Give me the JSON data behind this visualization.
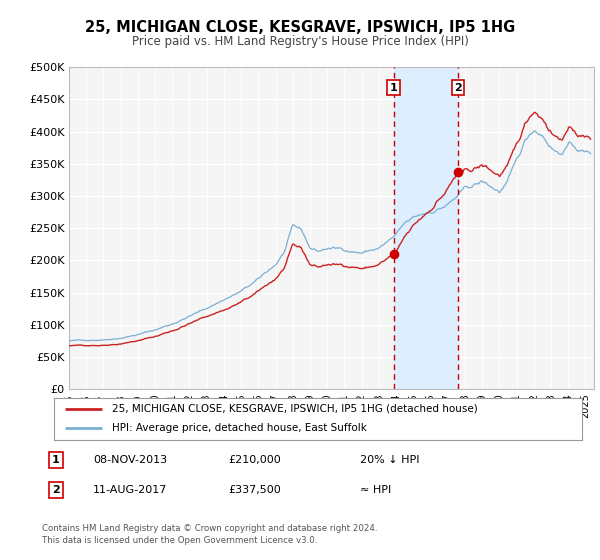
{
  "title": "25, MICHIGAN CLOSE, KESGRAVE, IPSWICH, IP5 1HG",
  "subtitle": "Price paid vs. HM Land Registry's House Price Index (HPI)",
  "ylim": [
    0,
    500000
  ],
  "yticks": [
    0,
    50000,
    100000,
    150000,
    200000,
    250000,
    300000,
    350000,
    400000,
    450000,
    500000
  ],
  "ytick_labels": [
    "£0",
    "£50K",
    "£100K",
    "£150K",
    "£200K",
    "£250K",
    "£300K",
    "£350K",
    "£400K",
    "£450K",
    "£500K"
  ],
  "xlim_start": 1995.0,
  "xlim_end": 2025.5,
  "background_color": "#ffffff",
  "plot_bg_color": "#f5f5f5",
  "grid_color": "#ffffff",
  "sale1_year": 2013.856,
  "sale1_price": 210000,
  "sale2_year": 2017.608,
  "sale2_price": 337500,
  "shaded_color": "#ddeeff",
  "vline_color": "#cc0000",
  "dot_color": "#cc0000",
  "hpi_line_color": "#7bafd4",
  "price_line_color": "#cc2222",
  "legend_label_price": "25, MICHIGAN CLOSE, KESGRAVE, IPSWICH, IP5 1HG (detached house)",
  "legend_label_hpi": "HPI: Average price, detached house, East Suffolk",
  "ann1_label": "1",
  "ann1_date": "08-NOV-2013",
  "ann1_price": "£210,000",
  "ann1_hpi": "20% ↓ HPI",
  "ann2_label": "2",
  "ann2_date": "11-AUG-2017",
  "ann2_price": "£337,500",
  "ann2_hpi": "≈ HPI",
  "footer": "Contains HM Land Registry data © Crown copyright and database right 2024.\nThis data is licensed under the Open Government Licence v3.0."
}
